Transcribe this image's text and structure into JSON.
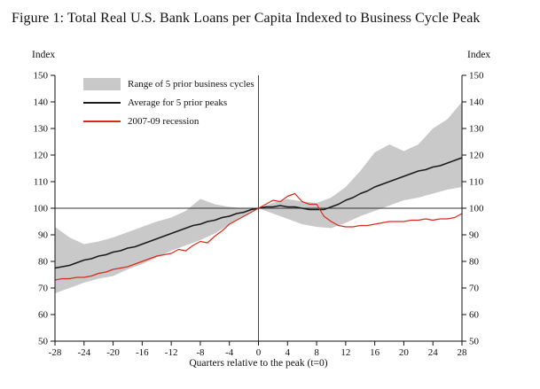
{
  "figure": {
    "title": "Figure 1: Total Real U.S. Bank Loans per Capita Indexed to Business Cycle Peak"
  },
  "chart_data": {
    "type": "line",
    "title": "Figure 1: Total Real U.S. Bank Loans per Capita Indexed to Business Cycle Peak",
    "xlabel": "Quarters relative to the peak (t=0)",
    "ylabel_left": "Index",
    "ylabel_right": "Index",
    "xlim": [
      -28,
      28
    ],
    "ylim": [
      50,
      150
    ],
    "x_ticks": [
      -28,
      -24,
      -20,
      -16,
      -12,
      -8,
      -4,
      0,
      4,
      8,
      12,
      16,
      20,
      24,
      28
    ],
    "y_ticks": [
      50,
      60,
      70,
      80,
      90,
      100,
      110,
      120,
      130,
      140,
      150
    ],
    "grid": false,
    "legend_position": "top-left-inside",
    "reference_lines": {
      "horizontal_y": 100,
      "vertical_x": 0
    },
    "legend": [
      {
        "label": "Range of 5 prior business cycles",
        "type": "band",
        "color": "#c9c9c9"
      },
      {
        "label": "Average for 5 prior peaks",
        "type": "line",
        "color": "#1a1a1a"
      },
      {
        "label": "2007-09 recession",
        "type": "line",
        "color": "#d92a1c"
      }
    ],
    "quarters": [
      -28,
      -27,
      -26,
      -25,
      -24,
      -23,
      -22,
      -21,
      -20,
      -19,
      -18,
      -17,
      -16,
      -15,
      -14,
      -13,
      -12,
      -11,
      -10,
      -9,
      -8,
      -7,
      -6,
      -5,
      -4,
      -3,
      -2,
      -1,
      0,
      1,
      2,
      3,
      4,
      5,
      6,
      7,
      8,
      9,
      10,
      11,
      12,
      13,
      14,
      15,
      16,
      17,
      18,
      19,
      20,
      21,
      22,
      23,
      24,
      25,
      26,
      27,
      28
    ],
    "band": {
      "label": "Range of 5 prior business cycles",
      "color": "#c9c9c9",
      "x": [
        -28,
        -26,
        -24,
        -22,
        -20,
        -18,
        -16,
        -14,
        -12,
        -10,
        -8,
        -6,
        -4,
        -2,
        0,
        2,
        4,
        6,
        8,
        10,
        12,
        14,
        16,
        18,
        20,
        22,
        24,
        26,
        28
      ],
      "lower": [
        68,
        70,
        72,
        73.5,
        74.5,
        77,
        79,
        81.5,
        84,
        86,
        88,
        90.5,
        94,
        97,
        100,
        98,
        96,
        94,
        93,
        92.5,
        94.5,
        97,
        99,
        101,
        103,
        104,
        105.5,
        107,
        108
      ],
      "upper": [
        93,
        89,
        86.5,
        87.5,
        89,
        91,
        93,
        95,
        96.5,
        99,
        103.5,
        101.5,
        100.5,
        100,
        100,
        102,
        103.5,
        102.5,
        102,
        104,
        108,
        114,
        121,
        124,
        121.5,
        124,
        130,
        133.5,
        140
      ]
    },
    "series": [
      {
        "name": "Average for 5 prior peaks",
        "color": "#1a1a1a",
        "values": [
          77.5,
          78,
          78.5,
          79.5,
          80.5,
          81,
          82,
          82.5,
          83.5,
          84,
          85,
          85.5,
          86.5,
          87.5,
          88.5,
          89.5,
          90.5,
          91.5,
          92.5,
          93.5,
          94,
          95,
          95.5,
          96.5,
          97,
          98,
          98.5,
          99.5,
          100,
          100.5,
          100.5,
          101,
          100.5,
          100.5,
          100,
          99.5,
          99.5,
          99.5,
          100.5,
          101.5,
          103,
          104,
          105.5,
          106.5,
          108,
          109,
          110,
          111,
          112,
          113,
          114,
          114.5,
          115.5,
          116,
          117,
          118,
          119
        ]
      },
      {
        "name": "2007-09 recession",
        "color": "#d92a1c",
        "values": [
          73,
          73.5,
          73.5,
          74,
          74,
          74.5,
          75.5,
          76,
          77,
          77.5,
          78,
          79,
          80,
          81,
          82,
          82.5,
          83,
          84.5,
          84,
          86,
          87.5,
          87,
          89.5,
          91.5,
          94,
          95.5,
          97,
          98.5,
          100,
          101.5,
          103,
          102.5,
          104.5,
          105.5,
          102.5,
          101.5,
          101.5,
          97,
          95,
          93.5,
          93,
          93,
          93.5,
          93.5,
          94,
          94.5,
          95,
          95,
          95,
          95.5,
          95.5,
          96,
          95.5,
          96,
          96,
          96.5,
          98
        ]
      }
    ]
  }
}
